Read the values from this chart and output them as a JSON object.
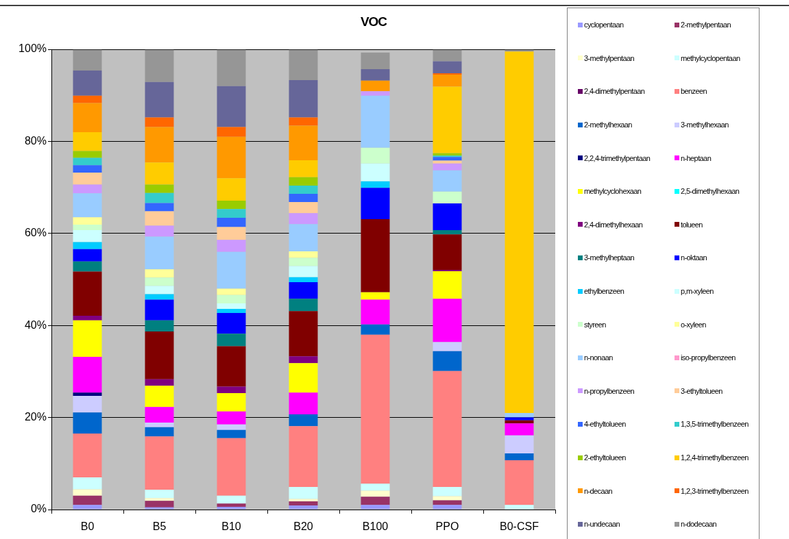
{
  "chart_data": {
    "type": "bar",
    "title": "VOC",
    "stacked": true,
    "grid": "y",
    "legend": "right",
    "categories": [
      "B0",
      "B5",
      "B10",
      "B20",
      "B100",
      "PPO",
      "B0-CSF"
    ],
    "ylim": [
      0,
      100
    ],
    "yticks": [
      {
        "value": 0,
        "label": "0%"
      },
      {
        "value": 20,
        "label": "20%"
      },
      {
        "value": 40,
        "label": "40%"
      },
      {
        "value": 60,
        "label": "60%"
      },
      {
        "value": 80,
        "label": "80%"
      },
      {
        "value": 100,
        "label": "100%"
      }
    ],
    "series": [
      {
        "name": "cyclopentaan",
        "color": "#9999ff",
        "values": [
          1.0,
          0.5,
          0.6,
          0.9,
          1.0,
          1.0,
          null
        ]
      },
      {
        "name": "2-methylpentaan",
        "color": "#993366",
        "values": [
          2.0,
          1.4,
          0.7,
          0.9,
          1.8,
          1.0,
          null
        ]
      },
      {
        "name": "3-methylpentaan",
        "color": "#ffffcc",
        "values": [
          1.4,
          0.6,
          null,
          0.5,
          1.3,
          0.9,
          null
        ]
      },
      {
        "name": "methylcyclopentaan",
        "color": "#ccffff",
        "values": [
          2.6,
          1.8,
          1.7,
          2.6,
          1.5,
          2.0,
          1.0
        ]
      },
      {
        "name": "2,4-dimethylpentaan",
        "color": "#660066",
        "values": [
          null,
          null,
          null,
          null,
          null,
          null,
          null
        ]
      },
      {
        "name": "benzeen",
        "color": "#ff8080",
        "values": [
          9.5,
          11.6,
          12.5,
          13.2,
          32.4,
          25.2,
          9.7
        ]
      },
      {
        "name": "2-methylhexaan",
        "color": "#0066cc",
        "values": [
          4.6,
          2.0,
          1.8,
          2.6,
          2.2,
          4.3,
          1.5
        ]
      },
      {
        "name": "3-methylhexaan",
        "color": "#ccccff",
        "values": [
          3.6,
          1.0,
          1.2,
          null,
          null,
          2.0,
          3.9
        ]
      },
      {
        "name": "2,2,4-trimethylpentaan",
        "color": "#000080",
        "values": [
          0.7,
          null,
          null,
          null,
          null,
          null,
          null
        ]
      },
      {
        "name": "n-heptaan",
        "color": "#ff00ff",
        "values": [
          7.8,
          3.4,
          2.8,
          4.7,
          5.4,
          9.4,
          2.6
        ]
      },
      {
        "name": "methylcyclohexaan",
        "color": "#ffff00",
        "values": [
          7.9,
          4.6,
          4.0,
          6.4,
          1.6,
          6.0,
          null
        ]
      },
      {
        "name": "2,5-dimethylhexaan",
        "color": "#00ffff",
        "values": [
          null,
          null,
          null,
          null,
          null,
          null,
          null
        ]
      },
      {
        "name": "2,4-dimethylhexaan",
        "color": "#800080",
        "values": [
          1.0,
          1.4,
          1.4,
          1.5,
          null,
          0.3,
          null
        ]
      },
      {
        "name": "tolueen",
        "color": "#800000",
        "values": [
          9.6,
          10.4,
          8.8,
          9.8,
          15.9,
          7.7,
          0.7
        ]
      },
      {
        "name": "3-methylheptaan",
        "color": "#008080",
        "values": [
          2.2,
          2.4,
          2.7,
          2.7,
          null,
          0.9,
          null
        ]
      },
      {
        "name": "n-oktaan",
        "color": "#0000ff",
        "values": [
          2.7,
          4.5,
          4.5,
          3.6,
          6.8,
          5.8,
          0.6
        ]
      },
      {
        "name": "ethylbenzeen",
        "color": "#00ccff",
        "values": [
          1.5,
          1.2,
          0.9,
          1.1,
          1.4,
          null,
          null
        ]
      },
      {
        "name": "p,m-xyleen",
        "color": "#ccffff",
        "values": [
          2.6,
          1.8,
          1.2,
          2.4,
          3.9,
          null,
          null
        ]
      },
      {
        "name": "styreen",
        "color": "#ccffcc",
        "values": [
          1.2,
          1.8,
          1.8,
          1.8,
          3.4,
          2.6,
          null
        ]
      },
      {
        "name": "o-xyleen",
        "color": "#ffff99",
        "values": [
          1.6,
          1.8,
          1.4,
          1.4,
          null,
          null,
          null
        ]
      },
      {
        "name": "n-nonaan",
        "color": "#99ccff",
        "values": [
          5.2,
          7.1,
          8.0,
          5.9,
          11.3,
          4.6,
          1.0
        ]
      },
      {
        "name": "iso-propylbenzeen",
        "color": "#ff99cc",
        "values": [
          null,
          null,
          null,
          null,
          null,
          null,
          null
        ]
      },
      {
        "name": "n-propylbenzeen",
        "color": "#cc99ff",
        "values": [
          1.9,
          2.4,
          2.6,
          2.4,
          1.0,
          1.5,
          null
        ]
      },
      {
        "name": "3-ethyltolueen",
        "color": "#ffcc99",
        "values": [
          2.6,
          3.1,
          2.8,
          2.4,
          null,
          0.6,
          null
        ]
      },
      {
        "name": "4-ethyltolueen",
        "color": "#3366ff",
        "values": [
          1.6,
          1.8,
          2.0,
          1.8,
          null,
          0.8,
          null
        ]
      },
      {
        "name": "1,3,5-trimethylbenzeen",
        "color": "#33cccc",
        "values": [
          1.6,
          2.2,
          1.9,
          1.8,
          null,
          0.3,
          null
        ]
      },
      {
        "name": "2-ethyltolueen",
        "color": "#99cc00",
        "values": [
          1.5,
          1.8,
          1.8,
          1.8,
          null,
          0.5,
          null
        ]
      },
      {
        "name": "1,2,4-trimethylbenzeen",
        "color": "#ffcc00",
        "values": [
          4.1,
          4.8,
          4.9,
          3.7,
          null,
          14.5,
          78.5
        ]
      },
      {
        "name": "n-decaan",
        "color": "#ff9900",
        "values": [
          6.3,
          7.7,
          9.0,
          7.5,
          2.3,
          2.6,
          null
        ]
      },
      {
        "name": "1,2,3-trimethylbenzeen",
        "color": "#ff6600",
        "values": [
          1.6,
          2.1,
          2.1,
          1.8,
          null,
          0.3,
          null
        ]
      },
      {
        "name": "n-undecaan",
        "color": "#666699",
        "values": [
          5.5,
          7.7,
          8.9,
          8.1,
          2.5,
          2.6,
          null
        ]
      },
      {
        "name": "n-dodecaan",
        "color": "#969696",
        "values": [
          4.5,
          7.0,
          7.9,
          6.6,
          3.6,
          2.5,
          0.4
        ]
      }
    ]
  }
}
